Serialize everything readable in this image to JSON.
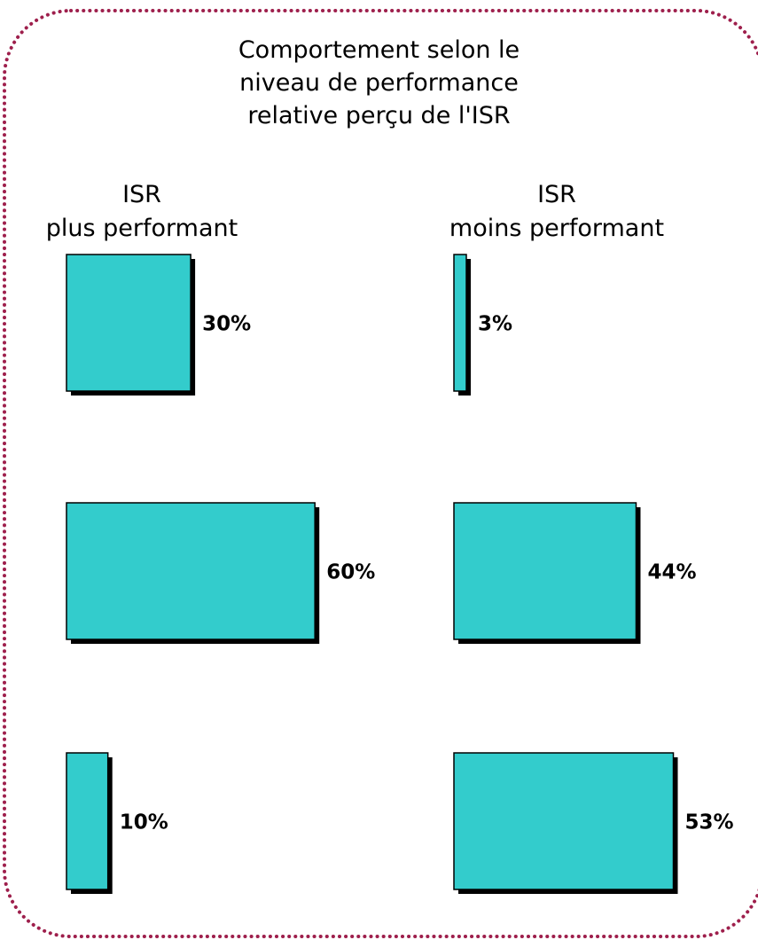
{
  "title": "Comportement selon le niveau de performance relative perçu de l'ISR",
  "chart_data": [
    {
      "type": "bar",
      "orientation": "horizontal",
      "title": "ISR",
      "subtitle": "plus performant",
      "values": [
        30,
        60,
        10
      ],
      "value_labels": [
        "30%",
        "60%",
        "10%"
      ],
      "color": "#33cccc",
      "xlim": [
        0,
        100
      ]
    },
    {
      "type": "bar",
      "orientation": "horizontal",
      "title": "ISR",
      "subtitle": "moins performant",
      "values": [
        3,
        44,
        53
      ],
      "value_labels": [
        "3%",
        "44%",
        "53%"
      ],
      "color": "#33cccc",
      "xlim": [
        0,
        100
      ]
    }
  ]
}
